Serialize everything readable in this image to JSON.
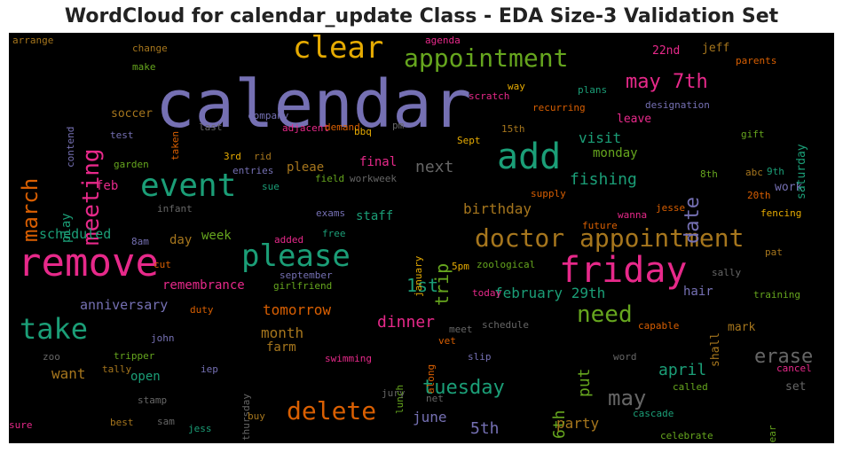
{
  "chart_data": {
    "type": "wordcloud",
    "title": "WordCloud for calendar_update Class - EDA Size-3 Validation Set",
    "background": "#000000",
    "palette": [
      "#7570b3",
      "#1b9e77",
      "#d95f02",
      "#e7298a",
      "#66a61e",
      "#e6ab02",
      "#a6761d",
      "#666666"
    ],
    "words": [
      "calendar",
      "remove",
      "add",
      "friday",
      "clear",
      "event",
      "please",
      "doctor appointment",
      "appointment",
      "delete",
      "take",
      "meeting",
      "march",
      "may 7th",
      "need",
      "tuesday",
      "may",
      "date",
      "next",
      "1st",
      "trip",
      "erase",
      "birthday",
      "fishing",
      "dinner",
      "february 29th",
      "april",
      "5th",
      "6th",
      "june",
      "put",
      "party",
      "tomorrow",
      "month",
      "anniversary",
      "remembrance",
      "scheduled",
      "want",
      "visit",
      "monday",
      "final",
      "pleae",
      "staff",
      "play",
      "feb",
      "day",
      "week",
      "farm",
      "open",
      "hair",
      "mark",
      "shall",
      "set",
      "work",
      "saturday",
      "soccer",
      "leave",
      "jeff",
      "22nd",
      "designation",
      "recurring",
      "scratch",
      "way",
      "agenda",
      "arrange",
      "change",
      "make",
      "parents",
      "plans",
      "contend",
      "test",
      "taken",
      "last",
      "company",
      "adjacent",
      "demand",
      "bbq",
      "pm",
      "15th",
      "Sept",
      "gift",
      "garden",
      "3rd",
      "rid",
      "entries",
      "sue",
      "field",
      "workweek",
      "8th",
      "abc",
      "9th",
      "20th",
      "fencing",
      "infant",
      "exams",
      "supply",
      "jesse",
      "wanna",
      "future",
      "8am",
      "added",
      "free",
      "january",
      "5pm",
      "zoological",
      "cut",
      "september",
      "girlfriend",
      "today",
      "pat",
      "sally",
      "training",
      "duty",
      "john",
      "zoo",
      "tripper",
      "tally",
      "iep",
      "thursday",
      "swimming",
      "lunch",
      "along",
      "meet",
      "schedule",
      "vet",
      "capable",
      "slip",
      "word",
      "cancel",
      "called",
      "jury",
      "net",
      "stamp",
      "sam",
      "best",
      "buy",
      "jess",
      "cascade",
      "rear",
      "celebrate",
      "sure"
    ]
  }
}
